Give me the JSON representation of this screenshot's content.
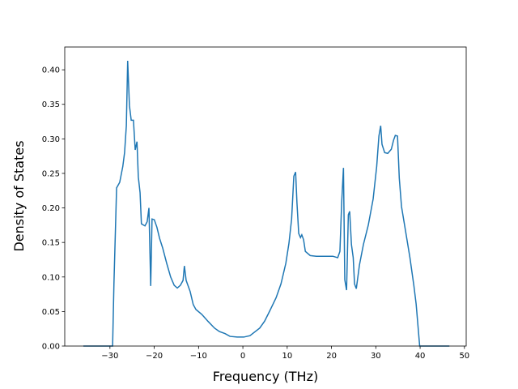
{
  "chart_data": {
    "type": "line",
    "x_label": "Frequency (THz)",
    "y_label": "Density of States",
    "x": [
      -36.0,
      -29.4,
      -29.1,
      -28.5,
      -27.8,
      -27.1,
      -26.7,
      -26.3,
      -26.0,
      -25.6,
      -25.2,
      -24.7,
      -24.3,
      -23.9,
      -23.6,
      -23.2,
      -22.9,
      -22.1,
      -21.6,
      -21.2,
      -20.8,
      -20.5,
      -20.0,
      -19.4,
      -18.8,
      -18.1,
      -17.2,
      -16.3,
      -15.5,
      -14.8,
      -14.1,
      -13.5,
      -13.2,
      -12.8,
      -11.9,
      -11.2,
      -10.6,
      -9.3,
      -7.9,
      -6.4,
      -5.3,
      -4.0,
      -2.9,
      -1.3,
      0.2,
      1.6,
      2.6,
      3.8,
      4.9,
      6.0,
      7.5,
      8.6,
      9.7,
      10.4,
      11.0,
      11.5,
      11.9,
      12.2,
      12.6,
      13.0,
      13.3,
      13.7,
      14.1,
      15.2,
      16.6,
      18.5,
      20.3,
      21.4,
      21.9,
      22.3,
      22.7,
      23.0,
      23.4,
      23.8,
      24.1,
      24.5,
      24.9,
      25.2,
      25.6,
      26.3,
      27.2,
      28.3,
      29.4,
      30.2,
      30.7,
      31.1,
      31.4,
      32.0,
      32.7,
      33.5,
      34.0,
      34.4,
      34.9,
      35.3,
      35.8,
      36.7,
      37.7,
      38.6,
      39.1,
      39.9,
      46.6
    ],
    "series": [
      {
        "color": "#1f77b4",
        "values": [
          0,
          0,
          0.09,
          0.229,
          0.237,
          0.26,
          0.28,
          0.319,
          0.413,
          0.348,
          0.327,
          0.327,
          0.284,
          0.296,
          0.245,
          0.222,
          0.177,
          0.174,
          0.18,
          0.2,
          0.087,
          0.184,
          0.183,
          0.172,
          0.156,
          0.142,
          0.12,
          0.1,
          0.088,
          0.084,
          0.088,
          0.095,
          0.116,
          0.095,
          0.079,
          0.06,
          0.053,
          0.046,
          0.036,
          0.026,
          0.021,
          0.018,
          0.014,
          0.013,
          0.013,
          0.015,
          0.02,
          0.026,
          0.036,
          0.05,
          0.07,
          0.09,
          0.12,
          0.149,
          0.184,
          0.246,
          0.252,
          0.208,
          0.163,
          0.157,
          0.161,
          0.154,
          0.137,
          0.131,
          0.13,
          0.13,
          0.13,
          0.128,
          0.137,
          0.208,
          0.258,
          0.096,
          0.081,
          0.19,
          0.195,
          0.147,
          0.128,
          0.09,
          0.083,
          0.117,
          0.147,
          0.175,
          0.213,
          0.26,
          0.304,
          0.319,
          0.292,
          0.28,
          0.279,
          0.285,
          0.298,
          0.305,
          0.304,
          0.243,
          0.202,
          0.167,
          0.128,
          0.087,
          0.061,
          0,
          0
        ]
      }
    ],
    "xlim": [
      -40.2,
      50.4
    ],
    "ylim": [
      0,
      0.433
    ],
    "xticks": [
      {
        "value": -30,
        "label": "−30"
      },
      {
        "value": -20,
        "label": "−20"
      },
      {
        "value": -10,
        "label": "−10"
      },
      0,
      10,
      20,
      30,
      40,
      50
    ],
    "yticks": [
      {
        "value": 0,
        "label": "0.00"
      },
      {
        "value": 0.05,
        "label": "0.05"
      },
      {
        "value": 0.1,
        "label": "0.10"
      },
      {
        "value": 0.15,
        "label": "0.15"
      },
      {
        "value": 0.2,
        "label": "0.20"
      },
      {
        "value": 0.25,
        "label": "0.25"
      },
      {
        "value": 0.3,
        "label": "0.30"
      },
      {
        "value": 0.35,
        "label": "0.35"
      },
      {
        "value": 0.4,
        "label": "0.40"
      }
    ]
  }
}
